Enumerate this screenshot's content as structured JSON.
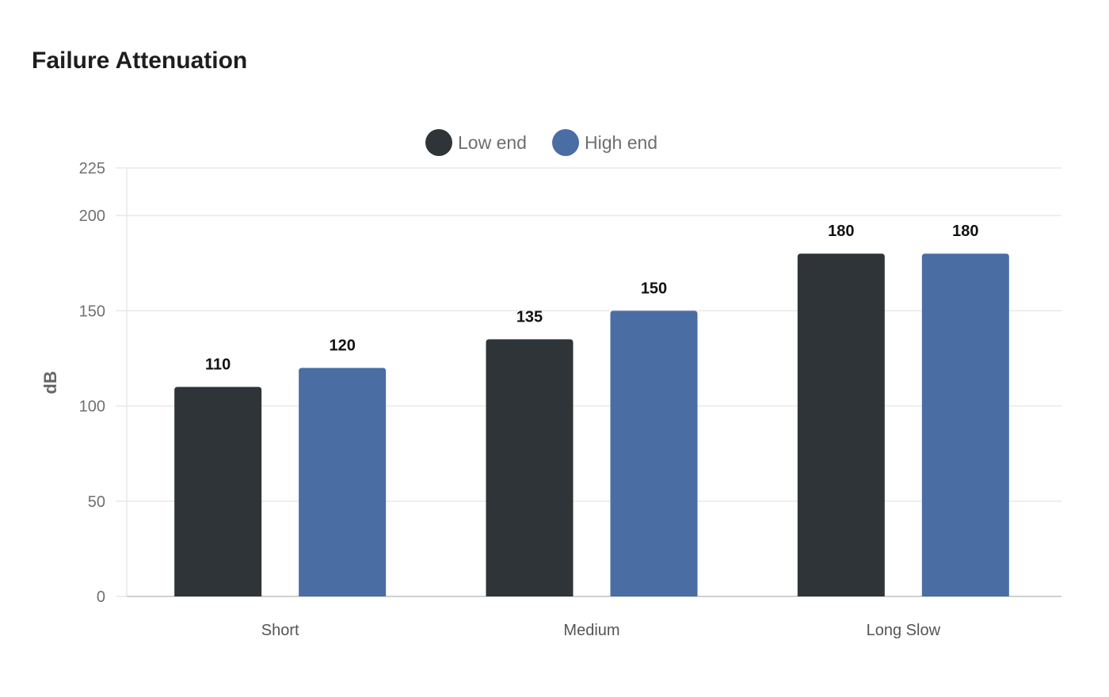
{
  "colors": {
    "low_end": "#2e3437",
    "high_end": "#4a6da4",
    "grid": "#e8e8e8",
    "axis": "#d0d0d0"
  },
  "chart_data": {
    "type": "bar",
    "title": "Failure Attenuation",
    "ylabel": "dB",
    "xlabel": "",
    "categories": [
      "Short",
      "Medium",
      "Long Slow"
    ],
    "series": [
      {
        "name": "Low end",
        "values": [
          110,
          135,
          180
        ]
      },
      {
        "name": "High end",
        "values": [
          120,
          150,
          180
        ]
      }
    ],
    "ylim": [
      0,
      225
    ],
    "yticks": [
      0,
      50,
      100,
      150,
      200,
      225
    ],
    "grid": true,
    "legend": "top-center",
    "data_labels": true
  }
}
